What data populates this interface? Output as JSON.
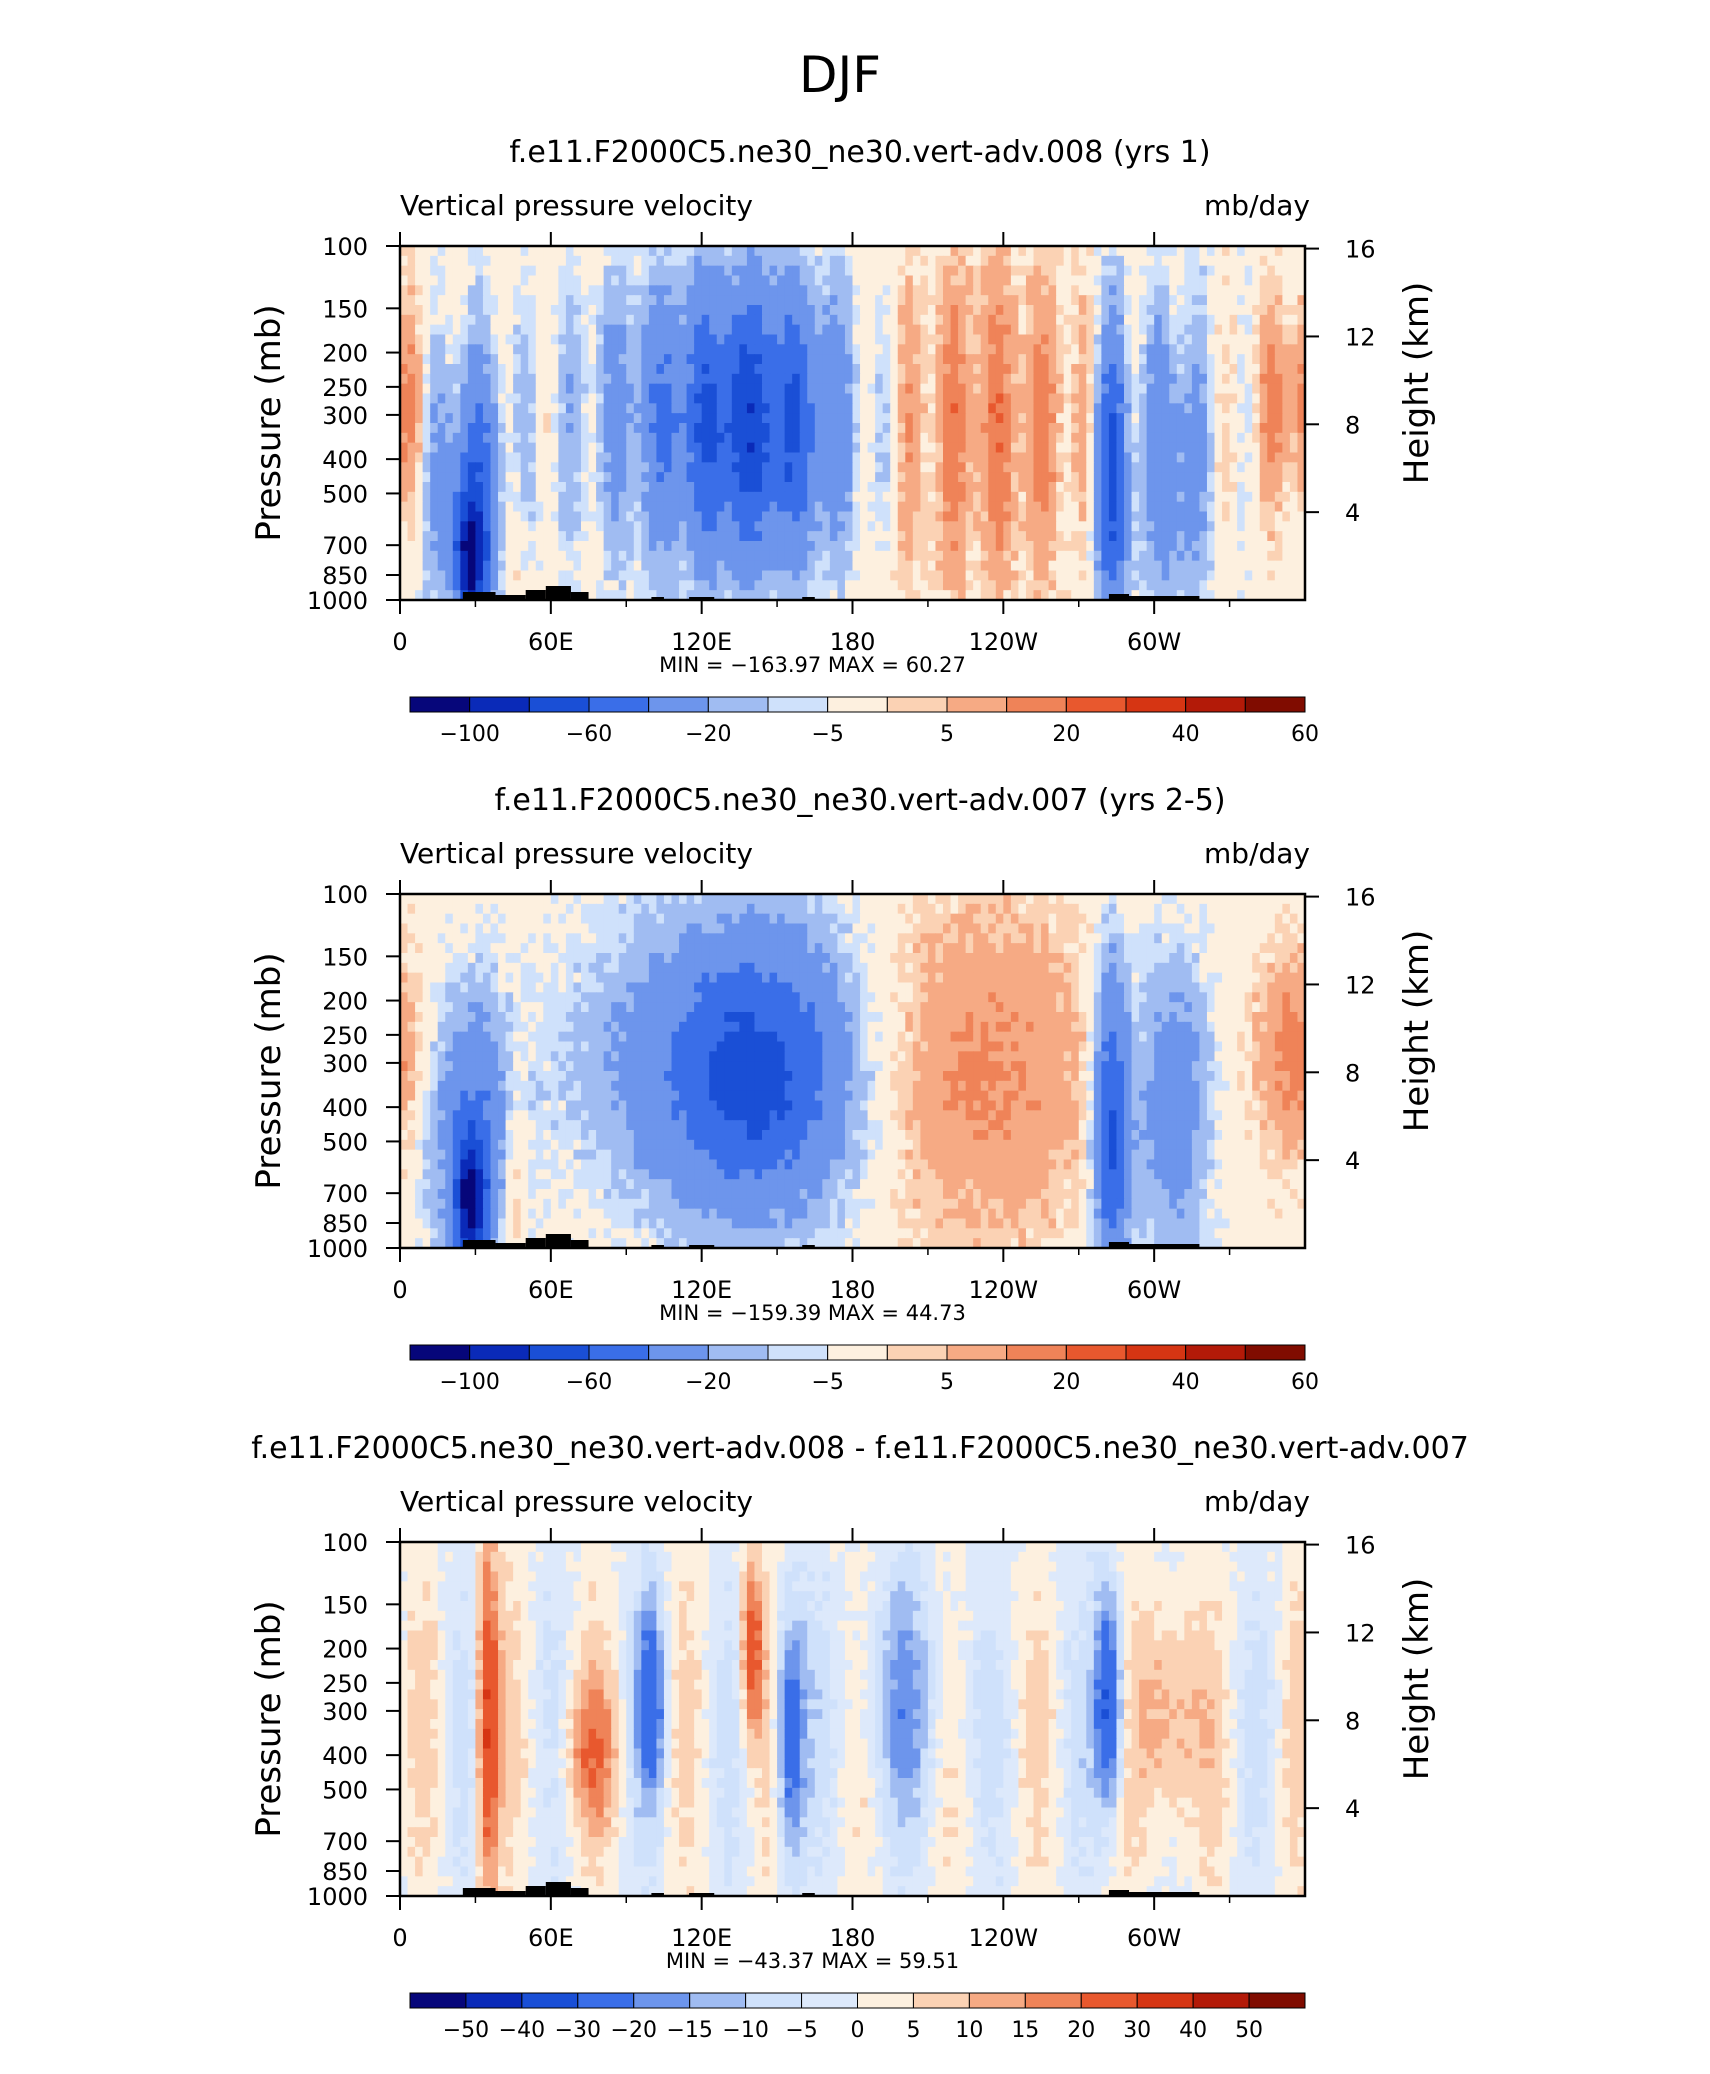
{
  "figure_title": "DJF",
  "chart_data": [
    {
      "type": "heatmap",
      "title": "f.e11.F2000C5.ne30_ne30.vert-adv.008 (yrs 1)",
      "subtitle_left": "Vertical pressure velocity",
      "subtitle_right": "mb/day",
      "ylabel": "Pressure (mb)",
      "ylabel_right": "Height (km)",
      "x_ticks": [
        "0",
        "60E",
        "120E",
        "180",
        "120W",
        "60W"
      ],
      "x_tick_values": [
        0,
        60,
        120,
        180,
        240,
        300
      ],
      "xlim": [
        0,
        360
      ],
      "y_ticks": [
        "100",
        "150",
        "200",
        "250",
        "300",
        "400",
        "500",
        "700",
        "850",
        "1000"
      ],
      "y_tick_values": [
        100,
        150,
        200,
        250,
        300,
        400,
        500,
        700,
        850,
        1000
      ],
      "ylim": [
        1000,
        100
      ],
      "y_scale": "log",
      "y_right_ticks": [
        "16",
        "12",
        "8",
        "4"
      ],
      "y_right_values": [
        16,
        12,
        8,
        4
      ],
      "stats": "MIN = −163.97   MAX =   60.27",
      "colorbar_labels": [
        "−100",
        "−60",
        "−20",
        "−5",
        "5",
        "20",
        "40",
        "60"
      ],
      "colorbar_colors": [
        "#06067a",
        "#0a2ab8",
        "#1a4fd6",
        "#3a6ee8",
        "#6d95ec",
        "#a0bcf2",
        "#cfe1fb",
        "#fdf0df",
        "#fbd2b4",
        "#f6aa84",
        "#ef8358",
        "#e8582e",
        "#d63513",
        "#b31a08",
        "#800c00"
      ]
    },
    {
      "type": "heatmap",
      "title": "f.e11.F2000C5.ne30_ne30.vert-adv.007 (yrs 2-5)",
      "subtitle_left": "Vertical pressure velocity",
      "subtitle_right": "mb/day",
      "ylabel": "Pressure (mb)",
      "ylabel_right": "Height (km)",
      "x_ticks": [
        "0",
        "60E",
        "120E",
        "180",
        "120W",
        "60W"
      ],
      "x_tick_values": [
        0,
        60,
        120,
        180,
        240,
        300
      ],
      "xlim": [
        0,
        360
      ],
      "y_ticks": [
        "100",
        "150",
        "200",
        "250",
        "300",
        "400",
        "500",
        "700",
        "850",
        "1000"
      ],
      "y_tick_values": [
        100,
        150,
        200,
        250,
        300,
        400,
        500,
        700,
        850,
        1000
      ],
      "ylim": [
        1000,
        100
      ],
      "y_scale": "log",
      "y_right_ticks": [
        "16",
        "12",
        "8",
        "4"
      ],
      "y_right_values": [
        16,
        12,
        8,
        4
      ],
      "stats": "MIN = −159.39   MAX =   44.73",
      "colorbar_labels": [
        "−100",
        "−60",
        "−20",
        "−5",
        "5",
        "20",
        "40",
        "60"
      ],
      "colorbar_colors": [
        "#06067a",
        "#0a2ab8",
        "#1a4fd6",
        "#3a6ee8",
        "#6d95ec",
        "#a0bcf2",
        "#cfe1fb",
        "#fdf0df",
        "#fbd2b4",
        "#f6aa84",
        "#ef8358",
        "#e8582e",
        "#d63513",
        "#b31a08",
        "#800c00"
      ]
    },
    {
      "type": "heatmap",
      "title": "f.e11.F2000C5.ne30_ne30.vert-adv.008 - f.e11.F2000C5.ne30_ne30.vert-adv.007",
      "subtitle_left": "Vertical pressure velocity",
      "subtitle_right": "mb/day",
      "ylabel": "Pressure (mb)",
      "ylabel_right": "Height (km)",
      "x_ticks": [
        "0",
        "60E",
        "120E",
        "180",
        "120W",
        "60W"
      ],
      "x_tick_values": [
        0,
        60,
        120,
        180,
        240,
        300
      ],
      "xlim": [
        0,
        360
      ],
      "y_ticks": [
        "100",
        "150",
        "200",
        "250",
        "300",
        "400",
        "500",
        "700",
        "850",
        "1000"
      ],
      "y_tick_values": [
        100,
        150,
        200,
        250,
        300,
        400,
        500,
        700,
        850,
        1000
      ],
      "ylim": [
        1000,
        100
      ],
      "y_scale": "log",
      "y_right_ticks": [
        "16",
        "12",
        "8",
        "4"
      ],
      "y_right_values": [
        16,
        12,
        8,
        4
      ],
      "stats": "MIN = −43.37   MAX =   59.51",
      "colorbar_labels": [
        "−50",
        "−40",
        "−30",
        "−20",
        "−15",
        "−10",
        "−5",
        "0",
        "5",
        "10",
        "15",
        "20",
        "30",
        "40",
        "50"
      ],
      "colorbar_colors": [
        "#06067a",
        "#0a2ab8",
        "#1a4fd6",
        "#3a6ee8",
        "#6d95ec",
        "#a0bcf2",
        "#cfe1fb",
        "#dde9fb",
        "#fdf0df",
        "#fbd2b4",
        "#f6aa84",
        "#ef8358",
        "#e8582e",
        "#d63513",
        "#b31a08",
        "#800c00"
      ]
    }
  ]
}
